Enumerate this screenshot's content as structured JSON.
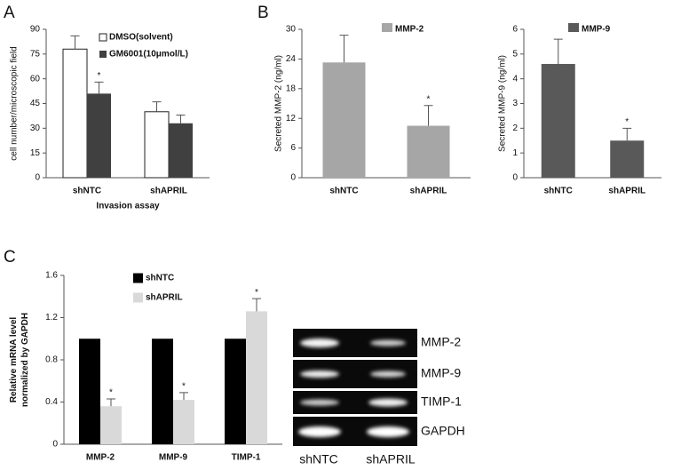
{
  "panel_labels": [
    "A",
    "B",
    "C"
  ],
  "chart_data": [
    {
      "type": "bar",
      "y_label": [
        "cell number/microscopic field"
      ],
      "x_label": "Invasion assay",
      "categories": [
        "shNTC",
        "shAPRIL"
      ],
      "series": [
        {
          "name": "DMSO(solvent)",
          "color": "#ffffff",
          "edgecolor": "#222222",
          "values": [
            78,
            40
          ],
          "errors": [
            8,
            6
          ],
          "significance": [
            null,
            null
          ]
        },
        {
          "name": "GM6001(10μmol/L)",
          "color": "#404040",
          "values": [
            51,
            33
          ],
          "errors": [
            7,
            5
          ],
          "significance": [
            "*",
            null
          ]
        }
      ],
      "ylim": [
        0,
        90
      ],
      "yticks": [
        0,
        15,
        30,
        45,
        60,
        75,
        90
      ]
    },
    {
      "type": "bar",
      "y_label": [
        "Secreted MMP-2  (ng/ml)"
      ],
      "categories": [
        "shNTC",
        "shAPRIL"
      ],
      "series": [
        {
          "name": "MMP-2",
          "color": "#a6a6a6",
          "values": [
            23.3,
            10.5
          ],
          "errors": [
            5.5,
            4.1
          ],
          "significance": [
            null,
            "*"
          ]
        }
      ],
      "ylim": [
        0,
        30
      ],
      "yticks": [
        0,
        6,
        12,
        18,
        24,
        30
      ]
    },
    {
      "type": "bar",
      "y_label": [
        "Secreted MMP-9  (ng/ml)"
      ],
      "categories": [
        "shNTC",
        "shAPRIL"
      ],
      "series": [
        {
          "name": "MMP-9",
          "color": "#595959",
          "values": [
            4.6,
            1.5
          ],
          "errors": [
            1.0,
            0.5
          ],
          "significance": [
            null,
            "*"
          ]
        }
      ],
      "ylim": [
        0,
        6
      ],
      "yticks": [
        0,
        1,
        2,
        3,
        4,
        5,
        6
      ]
    },
    {
      "type": "bar",
      "y_label": [
        "Relative mRNA level",
        "normalized by GAPDH"
      ],
      "categories": [
        "MMP-2",
        "MMP-9",
        "TIMP-1"
      ],
      "series": [
        {
          "name": "shNTC",
          "color": "#000000",
          "values": [
            1,
            1,
            1
          ],
          "errors": [
            null,
            null,
            null
          ],
          "significance": [
            null,
            null,
            null
          ]
        },
        {
          "name": "shAPRIL",
          "color": "#d9d9d9",
          "values": [
            0.36,
            0.42,
            1.26
          ],
          "errors": [
            0.07,
            0.07,
            0.12
          ],
          "significance": [
            "*",
            "*",
            "*"
          ]
        }
      ],
      "ylim": [
        0,
        1.6
      ],
      "yticks": [
        0,
        0.4,
        0.8,
        1.2,
        1.6
      ]
    }
  ],
  "gel": {
    "bands": [
      "MMP-2",
      "MMP-9",
      "TIMP-1",
      "GAPDH"
    ],
    "lanes": [
      "shNTC",
      "shAPRIL"
    ]
  }
}
